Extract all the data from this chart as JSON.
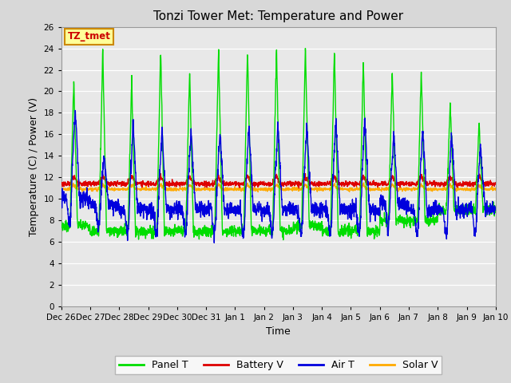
{
  "title": "Tonzi Tower Met: Temperature and Power",
  "xlabel": "Time",
  "ylabel": "Temperature (C) / Power (V)",
  "ylim": [
    0,
    26
  ],
  "yticks": [
    0,
    2,
    4,
    6,
    8,
    10,
    12,
    14,
    16,
    18,
    20,
    22,
    24,
    26
  ],
  "label_box_text": "TZ_tmet",
  "label_box_color": "#ffff99",
  "label_box_edge": "#cc8800",
  "label_text_color": "#cc0000",
  "colors": {
    "panel_t": "#00dd00",
    "battery_v": "#dd0000",
    "air_t": "#0000dd",
    "solar_v": "#ffaa00"
  },
  "legend_labels": [
    "Panel T",
    "Battery V",
    "Air T",
    "Solar V"
  ],
  "fig_bg_color": "#d8d8d8",
  "plot_bg_color": "#e8e8e8",
  "x_tick_labels": [
    "Dec 26",
    "Dec 27",
    "Dec 28",
    "Dec 29",
    "Dec 30",
    "Dec 31",
    "Jan 1",
    "Jan 2",
    "Jan 3",
    "Jan 4",
    "Jan 5",
    "Jan 6",
    "Jan 7",
    "Jan 8",
    "Jan 9",
    "Jan 10"
  ],
  "n_days": 15,
  "points_per_day": 144
}
